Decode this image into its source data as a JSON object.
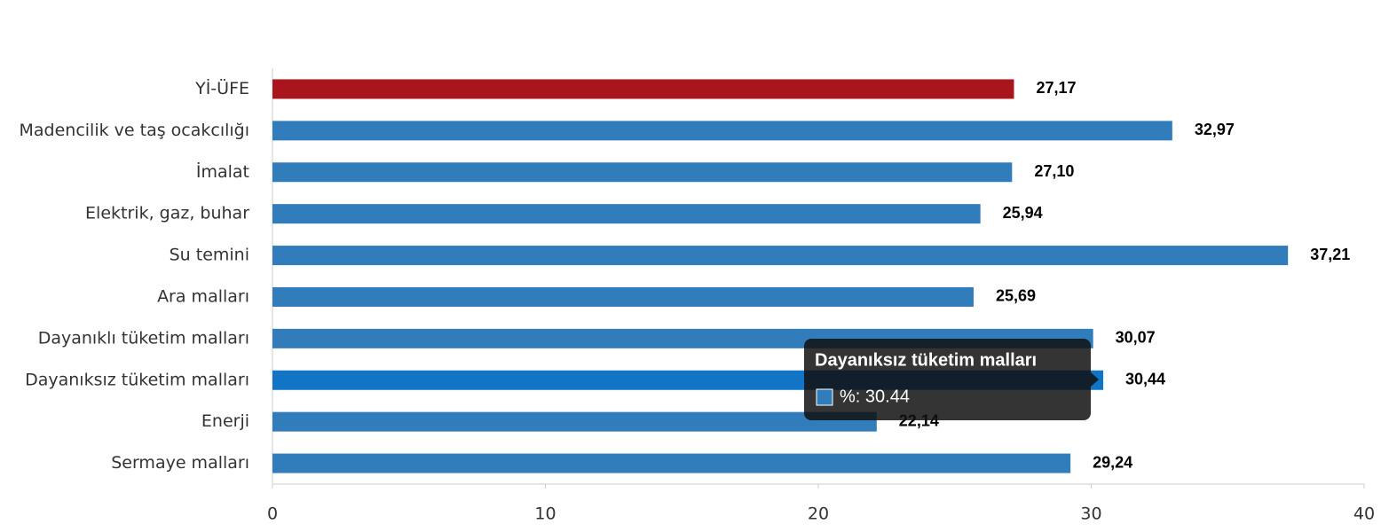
{
  "chart_data": {
    "type": "hbar",
    "categories": [
      "Yİ-ÜFE",
      "Madencilik ve taş ocakcılığı",
      "İmalat",
      "Elektrik, gaz, buhar",
      "Su temini",
      "Ara malları",
      "Dayanıklı tüketim malları",
      "Dayanıksız tüketim malları",
      "Enerji",
      "Sermaye malları"
    ],
    "series": [
      {
        "name": "%",
        "values": [
          27.17,
          32.97,
          27.1,
          25.94,
          37.21,
          25.69,
          30.07,
          30.44,
          22.14,
          29.24
        ],
        "value_labels": [
          "27,17",
          "32,97",
          "27,10",
          "25,94",
          "37,21",
          "25,69",
          "30,07",
          "30,44",
          "22,14",
          "29,24"
        ],
        "colors": [
          "#a8151c",
          "#317dbb",
          "#317dbb",
          "#317dbb",
          "#317dbb",
          "#317dbb",
          "#317dbb",
          "#1174c4",
          "#317dbb",
          "#317dbb"
        ]
      }
    ],
    "xlim": [
      0,
      40
    ],
    "xticks": [
      0,
      10,
      20,
      30,
      40
    ],
    "grid": false,
    "tooltip": {
      "title": "Dayanıksız tüketim malları",
      "label": "%: 30.44",
      "color": "#317dbb"
    }
  }
}
